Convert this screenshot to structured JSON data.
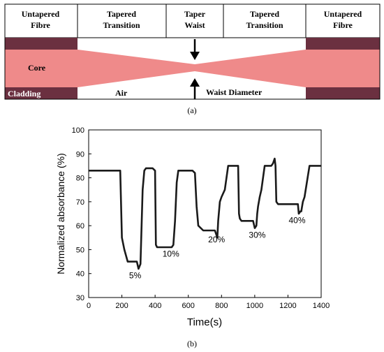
{
  "diagram": {
    "headers": [
      {
        "line1": "Untapered",
        "line2": "Fibre"
      },
      {
        "line1": "Tapered",
        "line2": "Transition"
      },
      {
        "line1": "Taper",
        "line2": "Waist"
      },
      {
        "line1": "Tapered",
        "line2": "Transition"
      },
      {
        "line1": "Untapered",
        "line2": "Fibre"
      }
    ],
    "labels": {
      "core": "Core",
      "cladding": "Cladding",
      "air": "Air",
      "waist_diameter": "Waist Diameter"
    },
    "caption": "(a)",
    "colors": {
      "core": "#ef8a8a",
      "cladding": "#6b3040",
      "border": "#000000"
    }
  },
  "chart_data": {
    "type": "line",
    "title": "",
    "xlabel": "Time(s)",
    "ylabel": "Normalized absorbance (%)",
    "xlim": [
      0,
      1400
    ],
    "ylim": [
      30,
      100
    ],
    "x_ticks": [
      0,
      200,
      400,
      600,
      800,
      1000,
      1200,
      1400
    ],
    "y_ticks": [
      30,
      40,
      50,
      60,
      70,
      80,
      90,
      100
    ],
    "series": [
      {
        "x": [
          0,
          190,
          200,
          215,
          235,
          290,
          300,
          312,
          325,
          335,
          345,
          360,
          385,
          400,
          405,
          412,
          420,
          440,
          500,
          510,
          520,
          530,
          540,
          560,
          600,
          625,
          640,
          650,
          660,
          690,
          705,
          740,
          760,
          775,
          780,
          790,
          800,
          820,
          840,
          850,
          900,
          905,
          910,
          920,
          950,
          980,
          990,
          1000,
          1010,
          1015,
          1020,
          1030,
          1040,
          1060,
          1080,
          1100,
          1110,
          1120,
          1125,
          1130,
          1140,
          1160,
          1200,
          1260,
          1265,
          1275,
          1280,
          1290,
          1300,
          1330,
          1350,
          1400
        ],
        "y": [
          83,
          83,
          55,
          50,
          45,
          45,
          42,
          44,
          75,
          83,
          84,
          84,
          84,
          83,
          52,
          51,
          51,
          51,
          51,
          52,
          62,
          78,
          83,
          83,
          83,
          83,
          82,
          68,
          60,
          58,
          58,
          58,
          58,
          55,
          62,
          70,
          72,
          75,
          85,
          85,
          85,
          65,
          63,
          62,
          62,
          62,
          62,
          59,
          60,
          65,
          68,
          72,
          75,
          85,
          85,
          85,
          86,
          88,
          85,
          70,
          69,
          69,
          69,
          69,
          65,
          66,
          66,
          70,
          72,
          85,
          85,
          85
        ]
      }
    ],
    "annotations": [
      {
        "text": "5%",
        "x": 280,
        "y": 38
      },
      {
        "text": "10%",
        "x": 495,
        "y": 47
      },
      {
        "text": "20%",
        "x": 770,
        "y": 53
      },
      {
        "text": "30%",
        "x": 1015,
        "y": 55
      },
      {
        "text": "40%",
        "x": 1255,
        "y": 61
      }
    ],
    "caption": "(b)"
  }
}
